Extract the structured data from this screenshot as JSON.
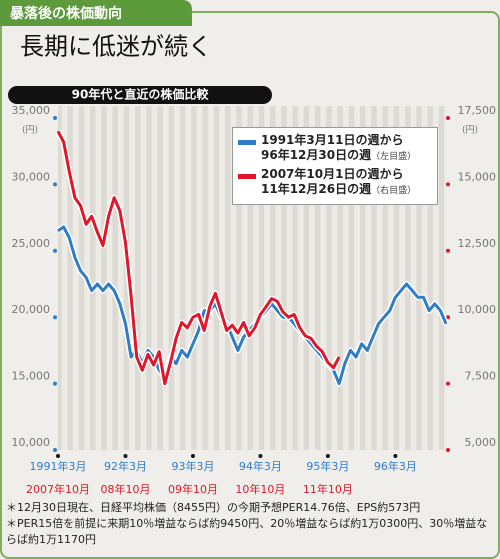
{
  "chart_data": {
    "type": "line",
    "header": "暴落後の株価動向",
    "title": "長期に低迷が続く",
    "subtitle": "90年代と直近の株価比較",
    "ylabel": "(円)",
    "y2label": "(円)",
    "categories": [
      "1991年3月",
      null,
      null,
      null,
      null,
      null,
      null,
      null,
      null,
      null,
      null,
      null,
      "92年3月",
      null,
      null,
      null,
      null,
      null,
      null,
      null,
      null,
      null,
      null,
      null,
      "93年3月",
      null,
      null,
      null,
      null,
      null,
      null,
      null,
      null,
      null,
      null,
      null,
      "94年3月",
      null,
      null,
      null,
      null,
      null,
      null,
      null,
      null,
      null,
      null,
      null,
      "95年3月",
      null,
      null,
      null,
      null,
      null,
      null,
      null,
      null,
      null,
      null,
      null,
      "96年3月",
      null,
      null,
      null,
      null,
      null,
      null,
      null,
      null,
      null
    ],
    "categories2": [
      "2007年10月",
      null,
      null,
      null,
      null,
      null,
      null,
      null,
      null,
      null,
      null,
      null,
      "08年10月",
      null,
      null,
      null,
      null,
      null,
      null,
      null,
      null,
      null,
      null,
      null,
      "09年10月",
      null,
      null,
      null,
      null,
      null,
      null,
      null,
      null,
      null,
      null,
      null,
      "10年10月",
      null,
      null,
      null,
      null,
      null,
      null,
      null,
      null,
      null,
      null,
      null,
      "11年10月",
      null,
      null,
      null,
      null,
      null,
      null,
      null,
      null,
      null,
      null,
      null,
      null,
      null,
      null,
      null,
      null,
      null,
      null,
      null,
      null,
      null
    ],
    "series": [
      {
        "name": "1991年3月11日の週から\n96年12月30日の週",
        "note": "（左目盛）",
        "color": "#2f7cc8",
        "values": [
          26500,
          26800,
          26000,
          24500,
          23500,
          23000,
          22000,
          22500,
          22000,
          22500,
          22000,
          21000,
          19500,
          17000,
          17500,
          16500,
          17500,
          17000,
          16000,
          15500,
          17000,
          16500,
          17500,
          17000,
          18000,
          19000,
          20500,
          20500,
          21000,
          20000,
          19500,
          18500,
          17500,
          18500,
          19000,
          19500,
          20000,
          20500,
          21000,
          20500,
          20000,
          20000,
          19500,
          19000,
          18500,
          18000,
          17500,
          17000,
          16500,
          16000,
          15000,
          16500,
          17500,
          17000,
          18000,
          17500,
          18500,
          19500,
          20000,
          20500,
          21500,
          22000,
          22500,
          22000,
          21500,
          21500,
          20500,
          21000,
          20500,
          19500
        ]
      },
      {
        "name": "2007年10月1日の週から\n11年12月26日の週",
        "note": "（右目盛）",
        "color": "#e0162b",
        "axis": "y2",
        "values": [
          17000,
          16600,
          15500,
          14500,
          14200,
          13500,
          13800,
          13200,
          12700,
          13800,
          14500,
          14000,
          12800,
          10800,
          8500,
          8000,
          8600,
          8200,
          8700,
          7500,
          8300,
          9200,
          9800,
          9600,
          10000,
          10100,
          9500,
          10400,
          10900,
          10200,
          9500,
          9700,
          9400,
          9800,
          9300,
          9600,
          10100,
          10400,
          10700,
          10600,
          10200,
          10000,
          10100,
          9600,
          9300,
          9200,
          8900,
          8700,
          8300,
          8100,
          8500,
          null,
          null,
          null,
          null,
          null,
          null,
          null,
          null,
          null,
          null,
          null,
          null,
          null,
          null,
          null,
          null,
          null,
          null,
          null
        ]
      }
    ],
    "ylim": [
      10000,
      35000
    ],
    "yticks": [
      {
        "value": 10000,
        "label": "10,000"
      },
      {
        "value": 15000,
        "label": "15,000"
      },
      {
        "value": 20000,
        "label": "20,000"
      },
      {
        "value": 25000,
        "label": "25,000"
      },
      {
        "value": 30000,
        "label": "30,000"
      },
      {
        "value": 35000,
        "label": "35,000"
      }
    ],
    "y2lim": [
      5000,
      17500
    ],
    "y2ticks": [
      {
        "value": 5000,
        "label": "5,000"
      },
      {
        "value": 7500,
        "label": "7,500"
      },
      {
        "value": 10000,
        "label": "10,000"
      },
      {
        "value": 12500,
        "label": "12,500"
      },
      {
        "value": 15000,
        "label": "15,000"
      },
      {
        "value": 17500,
        "label": "17,500"
      }
    ],
    "notes": [
      "＊12月30日現在、日経平均株価（8455円）の今期予想PER14.76倍、EPS約573円",
      "＊PER15倍を前提に来期10％増益ならば約9450円、20％増益ならば約1万0300円、30％増益ならば約1万1170円"
    ]
  }
}
